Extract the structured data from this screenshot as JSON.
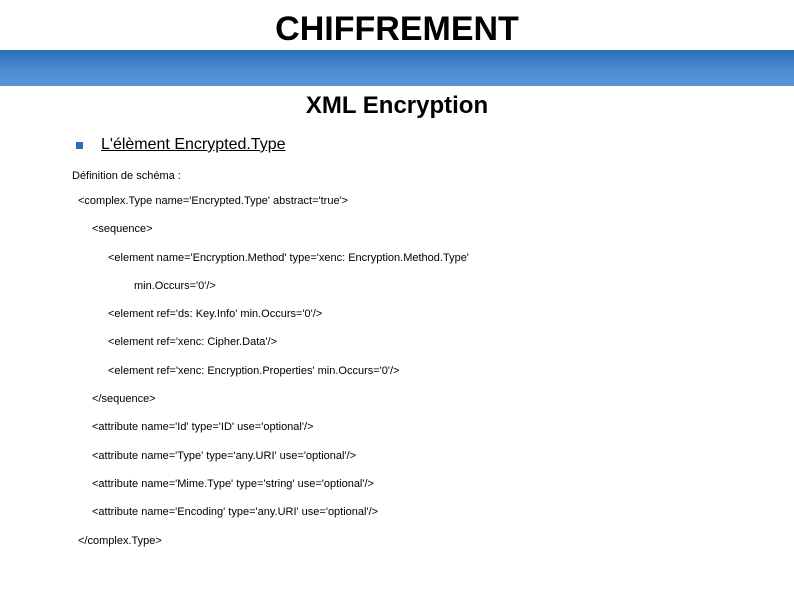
{
  "title": "CHIFFREMENT",
  "subtitle": "XML Encryption",
  "bullet_label": "L'élèment  Encrypted.Type",
  "definition_label": "Définition de schéma :",
  "code": {
    "l01": "<complex.Type name='Encrypted.Type' abstract='true'>",
    "l02": "<sequence>",
    "l03": "<element name='Encryption.Method' type='xenc: Encryption.Method.Type'",
    "l04": "min.Occurs='0'/>",
    "l05": "<element ref='ds: Key.Info' min.Occurs='0'/>",
    "l06": "<element ref='xenc: Cipher.Data'/>",
    "l07": "<element ref='xenc: Encryption.Properties' min.Occurs='0'/>",
    "l08": "</sequence>",
    "l09": "<attribute name='Id' type='ID' use='optional'/>",
    "l10": "<attribute name='Type' type='any.URI' use='optional'/>",
    "l11": "<attribute name='Mime.Type' type='string' use='optional'/>",
    "l12": "<attribute name='Encoding' type='any.URI' use='optional'/>",
    "l13": "</complex.Type>"
  },
  "colors": {
    "band_gradient_top": "#2a6db8",
    "band_gradient_bottom": "#5a95d8",
    "bullet": "#2a6db8",
    "text": "#000000",
    "background": "#ffffff"
  }
}
